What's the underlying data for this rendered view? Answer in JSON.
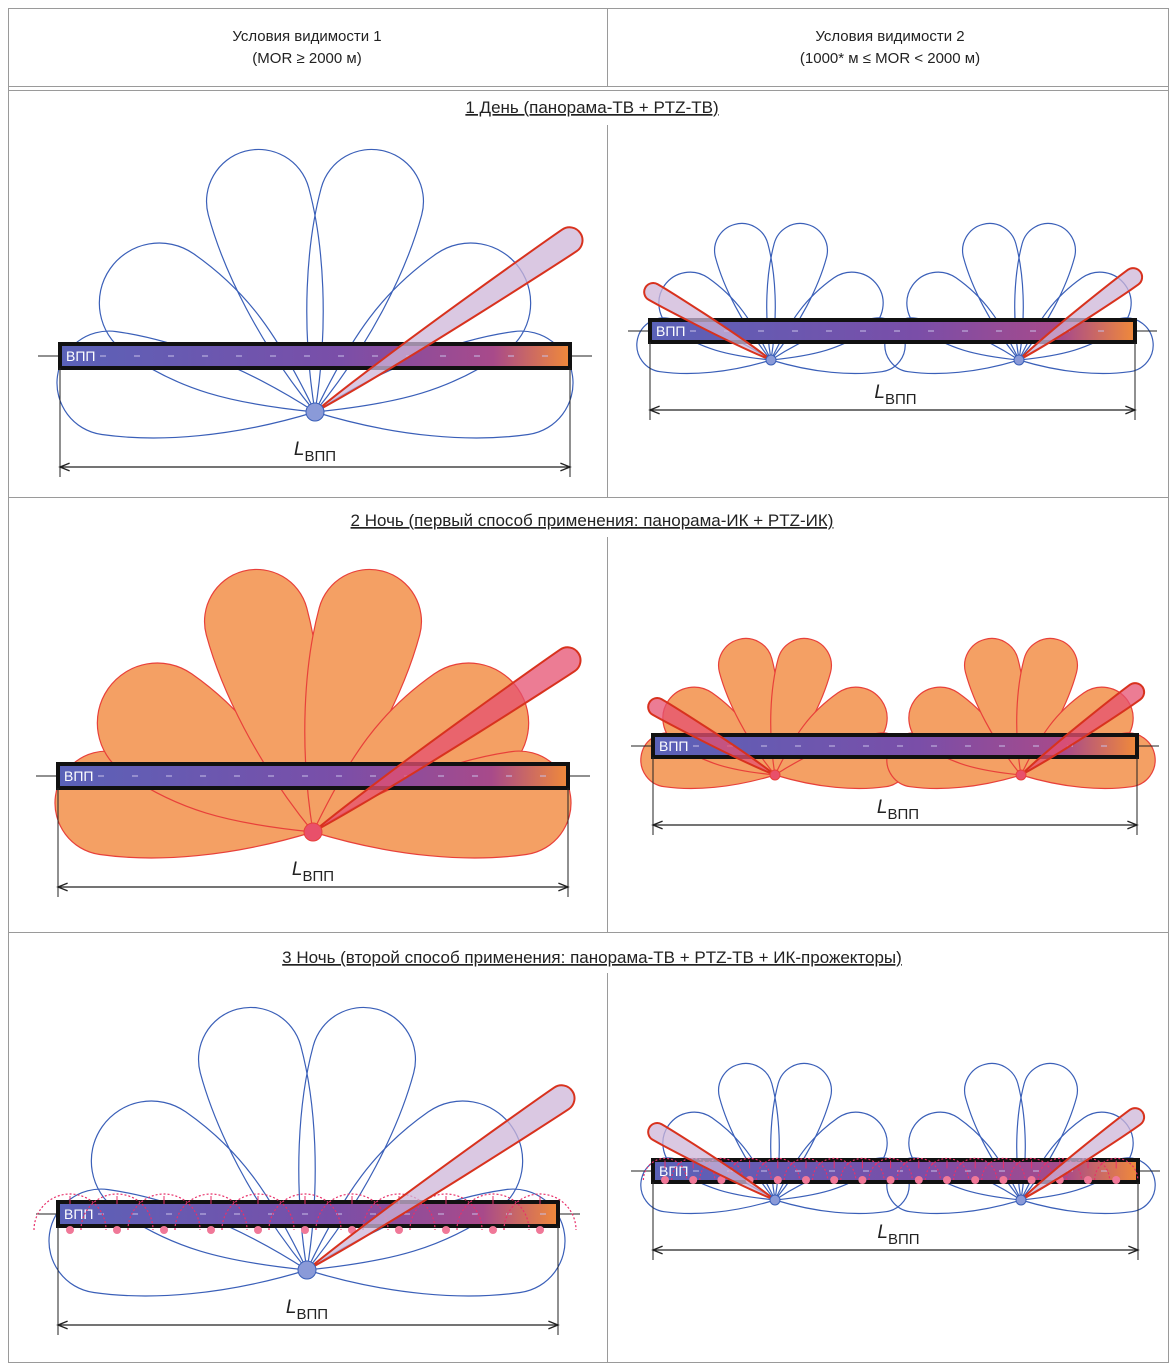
{
  "header": {
    "columns": [
      {
        "title": "Условия видимости 1",
        "condition": "(MOR ≥ 2000 м)"
      },
      {
        "title": "Условия видимости 2",
        "condition": "(1000* м ≤ MOR < 2000 м)"
      }
    ]
  },
  "sections": [
    {
      "title": "1  День (панорама-ТВ + PTZ-ТВ)"
    },
    {
      "title": "2  Ночь (первый способ применения: панорама-ИК + PTZ-ИК)"
    },
    {
      "title": "3  Ночь (второй способ применения: панорама-ТВ + PTZ-ТВ + ИК-прожекторы)"
    }
  ],
  "labels": {
    "runway": "ВПП",
    "length_symbol": "L",
    "length_subscript": "ВПП"
  }
}
